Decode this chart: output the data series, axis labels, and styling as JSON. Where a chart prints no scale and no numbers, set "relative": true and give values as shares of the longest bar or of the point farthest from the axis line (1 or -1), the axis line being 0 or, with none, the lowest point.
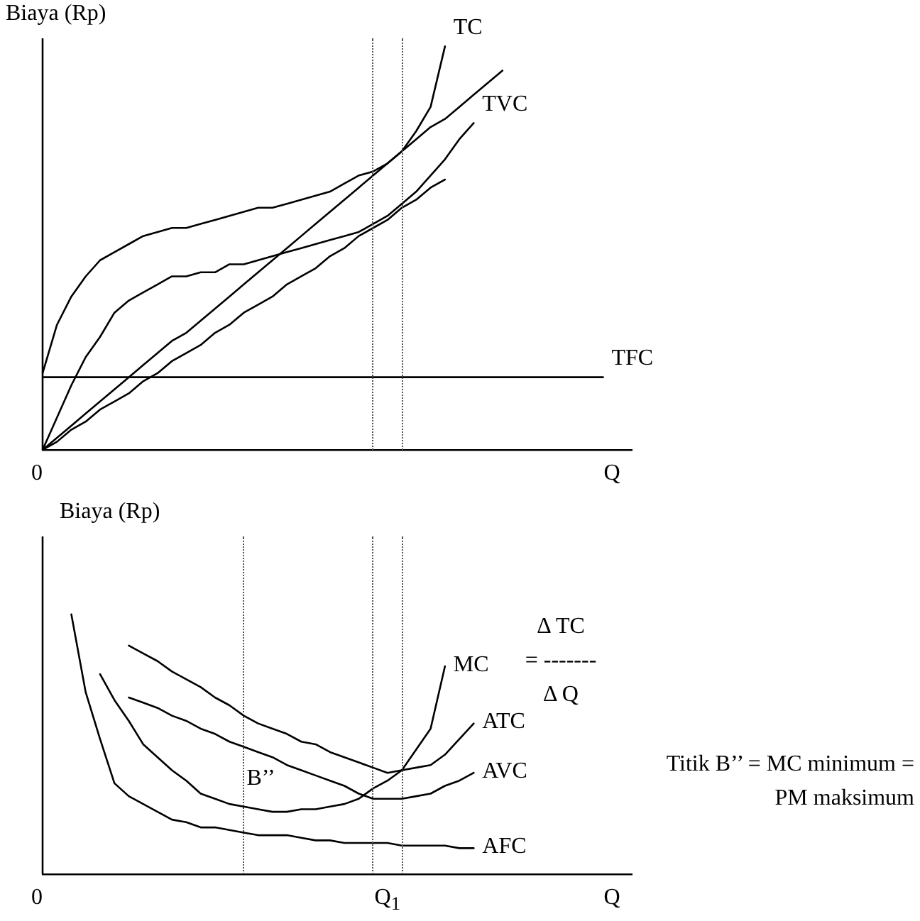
{
  "chart_data": [
    {
      "type": "line",
      "relative": true,
      "ylabel": "Biaya (Rp)",
      "xlabel": "Q",
      "legend": false,
      "marker": "none",
      "line_style": "solid",
      "categories": [
        null,
        null,
        null,
        null,
        null,
        null,
        null,
        null,
        null,
        null,
        null,
        null,
        null,
        null,
        null,
        null,
        null,
        null,
        null,
        null,
        null,
        null,
        null,
        null,
        null,
        null,
        null,
        null,
        null,
        null,
        null,
        null,
        null,
        null,
        null,
        null,
        null,
        null,
        null,
        null,
        null,
        null
      ],
      "series": [
        {
          "name": "TC",
          "color": "#000000",
          "values": [
            0.19,
            0.31,
            0.38,
            0.43,
            0.47,
            0.49,
            0.51,
            0.53,
            0.54,
            0.55,
            0.55,
            0.56,
            0.57,
            0.58,
            0.59,
            0.6,
            0.6,
            0.61,
            0.62,
            0.63,
            0.64,
            0.66,
            0.68,
            0.69,
            0.71,
            0.74,
            0.79,
            0.85,
            1,
            null,
            null,
            null,
            null,
            null,
            null,
            null,
            null,
            null,
            null,
            null,
            null,
            null
          ]
        },
        {
          "name": "TVC",
          "color": "#000000",
          "values": [
            0,
            0.08,
            0.16,
            0.23,
            0.28,
            0.34,
            0.37,
            0.39,
            0.41,
            0.43,
            0.43,
            0.44,
            0.44,
            0.46,
            0.46,
            0.47,
            0.48,
            0.49,
            0.5,
            0.51,
            0.52,
            0.53,
            0.54,
            0.56,
            0.58,
            0.61,
            0.64,
            0.68,
            0.72,
            0.77,
            0.81,
            null,
            null,
            null,
            null,
            null,
            null,
            null,
            null,
            null,
            null,
            null
          ]
        },
        {
          "name": "TFC",
          "color": "#000000",
          "values": [
            0.18,
            0.18,
            0.18,
            0.18,
            0.18,
            0.18,
            0.18,
            0.18,
            0.18,
            0.18,
            0.18,
            0.18,
            0.18,
            0.18,
            0.18,
            0.18,
            0.18,
            0.18,
            0.18,
            0.18,
            0.18,
            0.18,
            0.18,
            0.18,
            0.18,
            0.18,
            0.18,
            0.18,
            0.18,
            0.18,
            0.18,
            0.18,
            0.18,
            0.18,
            0.18,
            0.18,
            0.18,
            0.18,
            0.18,
            0.18,
            null,
            null
          ]
        },
        {
          "color": "#000000",
          "values": [
            0,
            0.03,
            0.06,
            0.09,
            0.12,
            0.15,
            0.18,
            0.21,
            0.24,
            0.27,
            0.29,
            0.32,
            0.35,
            0.38,
            0.41,
            0.44,
            0.47,
            0.5,
            0.53,
            0.56,
            0.59,
            0.62,
            0.65,
            0.68,
            0.71,
            0.74,
            0.77,
            0.8,
            0.82,
            0.85,
            0.88,
            0.91,
            0.94,
            null,
            null,
            null,
            null,
            null,
            null,
            null,
            null,
            null
          ]
        },
        {
          "color": "#000000",
          "values": [
            0,
            0.02,
            0.05,
            0.07,
            0.1,
            0.12,
            0.14,
            0.17,
            0.19,
            0.22,
            0.24,
            0.26,
            0.29,
            0.31,
            0.34,
            0.36,
            0.38,
            0.41,
            0.43,
            0.45,
            0.48,
            0.5,
            0.53,
            0.55,
            0.57,
            0.6,
            0.62,
            0.65,
            0.67,
            null,
            null,
            null,
            null,
            null,
            null,
            null,
            null,
            null,
            null,
            null,
            null,
            null
          ]
        }
      ],
      "annotations": [
        "0"
      ]
    },
    {
      "type": "line",
      "relative": true,
      "ylabel": "Biaya (Rp)",
      "xlabel": "Q",
      "legend": false,
      "marker": "none",
      "line_style": "solid",
      "categories": [
        "0",
        null,
        null,
        null,
        null,
        null,
        null,
        null,
        null,
        null,
        null,
        null,
        null,
        null,
        null,
        null,
        null,
        null,
        null,
        null,
        null,
        null,
        null,
        null,
        "Q$_{1}$",
        null,
        null,
        null,
        null,
        null,
        null,
        null,
        null,
        null,
        null,
        null,
        null,
        null,
        null,
        null,
        null,
        null
      ],
      "series": [
        {
          "name": "MC",
          "color": "#000000",
          "values": [
            null,
            null,
            null,
            null,
            0.77,
            0.67,
            0.59,
            0.5,
            0.45,
            0.4,
            0.36,
            0.31,
            0.29,
            0.27,
            0.26,
            0.25,
            0.24,
            0.24,
            0.25,
            0.25,
            0.26,
            0.27,
            0.29,
            0.33,
            0.36,
            0.4,
            0.48,
            0.56,
            0.8,
            null,
            null,
            null,
            null,
            null,
            null,
            null,
            null,
            null,
            null,
            null,
            null,
            null
          ]
        },
        {
          "name": "ATC",
          "color": "#000000",
          "values": [
            null,
            null,
            null,
            null,
            null,
            null,
            0.88,
            0.85,
            0.82,
            0.78,
            0.75,
            0.72,
            0.68,
            0.65,
            0.61,
            0.58,
            0.56,
            0.54,
            0.51,
            0.5,
            0.47,
            0.45,
            0.43,
            0.41,
            0.39,
            0.4,
            0.41,
            0.42,
            0.46,
            0.52,
            0.58,
            null,
            null,
            null,
            null,
            null,
            null,
            null,
            null,
            null,
            null,
            null
          ]
        },
        {
          "name": "AVC",
          "color": "#000000",
          "values": [
            null,
            null,
            null,
            null,
            null,
            null,
            0.68,
            0.66,
            0.64,
            0.61,
            0.59,
            0.56,
            0.54,
            0.51,
            0.49,
            0.47,
            0.45,
            0.42,
            0.4,
            0.38,
            0.36,
            0.34,
            0.31,
            0.29,
            0.29,
            0.29,
            0.3,
            0.31,
            0.34,
            0.36,
            0.39,
            null,
            null,
            null,
            null,
            null,
            null,
            null,
            null,
            null,
            null,
            null
          ]
        },
        {
          "name": "AFC",
          "color": "#000000",
          "values": [
            null,
            null,
            1,
            0.7,
            0.52,
            0.35,
            0.3,
            0.27,
            0.24,
            0.21,
            0.2,
            0.18,
            0.18,
            0.17,
            0.16,
            0.15,
            0.15,
            0.15,
            0.14,
            0.13,
            0.13,
            0.12,
            0.12,
            0.12,
            0.12,
            0.11,
            0.11,
            0.11,
            0.11,
            0.1,
            0.1,
            null,
            null,
            null,
            null,
            null,
            null,
            null,
            null,
            null,
            null,
            null
          ]
        }
      ],
      "annotations": [
        "Δ TC\n= -------\nΔ Q",
        "Titik B’’ = MC minimum =\nPM maksimum",
        "B’’"
      ]
    }
  ]
}
